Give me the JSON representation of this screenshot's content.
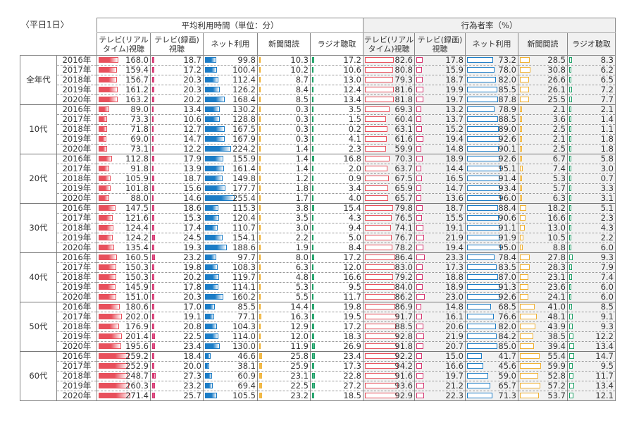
{
  "title": "〈平日1日〉",
  "header": {
    "time_group": "平均利用時間（単位：分）",
    "rate_group": "行為者率（%）",
    "columns": [
      "テレビ(リアルタイム)視聴",
      "テレビ(録画)視聴",
      "ネット利用",
      "新聞閲読",
      "ラジオ聴取"
    ],
    "columns_rate": [
      "テレビ(リアルタイム)視聴",
      "テレビ(録画)視聴",
      "ネット利用",
      "新聞閲読",
      "ラジオ聴取"
    ]
  },
  "colors": {
    "tv_live": "#e8505c",
    "tv_rec": "#d6336f",
    "net": "#1b7cc6",
    "paper": "#f0b030",
    "radio": "#1aa065"
  },
  "groups": [
    {
      "label": "全年代",
      "rows": [
        {
          "year": "2016年",
          "time": [
            "168.0",
            "18.7",
            "99.8",
            "10.3",
            "17.2"
          ],
          "rate": [
            "82.6",
            "17.8",
            "73.2",
            "28.5",
            "8.3"
          ]
        },
        {
          "year": "2017年",
          "time": [
            "159.4",
            "17.2",
            "100.4",
            "10.2",
            "10.6"
          ],
          "rate": [
            "80.8",
            "15.9",
            "78.0",
            "30.8",
            "6.2"
          ]
        },
        {
          "year": "2018年",
          "time": [
            "156.7",
            "20.3",
            "112.4",
            "8.7",
            "13.0"
          ],
          "rate": [
            "79.3",
            "18.7",
            "82.0",
            "26.6",
            "6.5"
          ]
        },
        {
          "year": "2019年",
          "time": [
            "161.2",
            "20.3",
            "126.2",
            "8.4",
            "12.4"
          ],
          "rate": [
            "81.6",
            "19.9",
            "85.5",
            "26.1",
            "7.2"
          ]
        },
        {
          "year": "2020年",
          "time": [
            "163.2",
            "20.2",
            "168.4",
            "8.5",
            "13.4"
          ],
          "rate": [
            "81.8",
            "19.7",
            "87.8",
            "25.5",
            "7.7"
          ]
        }
      ]
    },
    {
      "label": "10代",
      "rows": [
        {
          "year": "2016年",
          "time": [
            "89.0",
            "13.4",
            "130.2",
            "0.3",
            "3.5"
          ],
          "rate": [
            "69.3",
            "13.2",
            "78.9",
            "2.1",
            "2.1"
          ]
        },
        {
          "year": "2017年",
          "time": [
            "73.3",
            "10.6",
            "128.8",
            "0.3",
            "1.5"
          ],
          "rate": [
            "60.4",
            "13.7",
            "88.5",
            "3.6",
            "1.4"
          ]
        },
        {
          "year": "2018年",
          "time": [
            "71.8",
            "12.7",
            "167.5",
            "0.3",
            "0.2"
          ],
          "rate": [
            "63.1",
            "15.2",
            "89.0",
            "2.5",
            "1.1"
          ]
        },
        {
          "year": "2019年",
          "time": [
            "69.0",
            "14.7",
            "167.9",
            "0.3",
            "4.1"
          ],
          "rate": [
            "61.6",
            "19.4",
            "92.6",
            "2.1",
            "1.8"
          ]
        },
        {
          "year": "2020年",
          "time": [
            "73.1",
            "12.2",
            "224.2",
            "1.4",
            "2.3"
          ],
          "rate": [
            "59.9",
            "14.8",
            "90.1",
            "2.5",
            "1.8"
          ]
        }
      ]
    },
    {
      "label": "20代",
      "rows": [
        {
          "year": "2016年",
          "time": [
            "112.8",
            "17.9",
            "155.9",
            "1.4",
            "16.8"
          ],
          "rate": [
            "70.3",
            "18.9",
            "92.6",
            "6.7",
            "5.8"
          ]
        },
        {
          "year": "2017年",
          "time": [
            "91.8",
            "13.9",
            "161.4",
            "1.4",
            "2.0"
          ],
          "rate": [
            "63.7",
            "14.4",
            "95.1",
            "7.4",
            "3.0"
          ]
        },
        {
          "year": "2018年",
          "time": [
            "105.9",
            "18.7",
            "149.8",
            "1.2",
            "0.9"
          ],
          "rate": [
            "67.5",
            "16.5",
            "91.4",
            "5.3",
            "0.7"
          ]
        },
        {
          "year": "2019年",
          "time": [
            "101.8",
            "15.6",
            "177.7",
            "1.8",
            "3.4"
          ],
          "rate": [
            "65.9",
            "14.7",
            "93.4",
            "5.7",
            "3.3"
          ]
        },
        {
          "year": "2020年",
          "time": [
            "88.0",
            "14.6",
            "255.4",
            "1.7",
            "4.0"
          ],
          "rate": [
            "65.7",
            "13.6",
            "96.0",
            "6.3",
            "3.1"
          ]
        }
      ]
    },
    {
      "label": "30代",
      "rows": [
        {
          "year": "2016年",
          "time": [
            "147.5",
            "18.6",
            "115.3",
            "3.8",
            "15.4"
          ],
          "rate": [
            "79.8",
            "18.7",
            "88.4",
            "18.2",
            "5.1"
          ]
        },
        {
          "year": "2017年",
          "time": [
            "121.6",
            "15.3",
            "120.4",
            "3.5",
            "4.3"
          ],
          "rate": [
            "76.5",
            "15.5",
            "90.6",
            "16.6",
            "2.3"
          ]
        },
        {
          "year": "2018年",
          "time": [
            "124.4",
            "17.4",
            "110.7",
            "3.0",
            "9.4"
          ],
          "rate": [
            "74.1",
            "19.1",
            "91.1",
            "13.0",
            "4.3"
          ]
        },
        {
          "year": "2019年",
          "time": [
            "124.2",
            "24.5",
            "154.1",
            "2.2",
            "5.0"
          ],
          "rate": [
            "76.7",
            "21.9",
            "91.9",
            "10.5",
            "2.2"
          ]
        },
        {
          "year": "2020年",
          "time": [
            "135.4",
            "19.3",
            "188.6",
            "1.9",
            "8.4"
          ],
          "rate": [
            "78.2",
            "19.4",
            "95.0",
            "8.8",
            "6.0"
          ]
        }
      ]
    },
    {
      "label": "40代",
      "rows": [
        {
          "year": "2016年",
          "time": [
            "160.5",
            "23.2",
            "97.7",
            "8.0",
            "17.2"
          ],
          "rate": [
            "86.4",
            "23.3",
            "78.4",
            "27.8",
            "9.3"
          ]
        },
        {
          "year": "2017年",
          "time": [
            "150.3",
            "19.8",
            "108.3",
            "6.3",
            "12.0"
          ],
          "rate": [
            "83.0",
            "17.3",
            "83.5",
            "28.3",
            "7.9"
          ]
        },
        {
          "year": "2018年",
          "time": [
            "150.3",
            "20.2",
            "119.7",
            "4.8",
            "16.6"
          ],
          "rate": [
            "79.2",
            "18.8",
            "87.0",
            "23.1",
            "7.4"
          ]
        },
        {
          "year": "2019年",
          "time": [
            "145.9",
            "17.8",
            "114.1",
            "5.3",
            "9.5"
          ],
          "rate": [
            "84.0",
            "18.9",
            "91.3",
            "23.6",
            "6.0"
          ]
        },
        {
          "year": "2020年",
          "time": [
            "151.0",
            "20.3",
            "160.2",
            "5.5",
            "11.7"
          ],
          "rate": [
            "86.2",
            "23.0",
            "92.6",
            "24.1",
            "6.0"
          ]
        }
      ]
    },
    {
      "label": "50代",
      "rows": [
        {
          "year": "2016年",
          "time": [
            "180.6",
            "17.0",
            "85.5",
            "14.4",
            "19.8"
          ],
          "rate": [
            "86.9",
            "14.8",
            "68.5",
            "41.0",
            "8.5"
          ]
        },
        {
          "year": "2017年",
          "time": [
            "202.0",
            "19.1",
            "77.1",
            "16.3",
            "19.5"
          ],
          "rate": [
            "91.7",
            "16.1",
            "76.6",
            "48.1",
            "9.1"
          ]
        },
        {
          "year": "2018年",
          "time": [
            "176.9",
            "20.8",
            "104.3",
            "12.9",
            "17.2"
          ],
          "rate": [
            "88.5",
            "20.6",
            "82.0",
            "43.9",
            "9.3"
          ]
        },
        {
          "year": "2019年",
          "time": [
            "201.4",
            "22.5",
            "114.0",
            "12.0",
            "18.3"
          ],
          "rate": [
            "92.8",
            "21.9",
            "84.2",
            "38.5",
            "12.2"
          ]
        },
        {
          "year": "2020年",
          "time": [
            "195.6",
            "23.4",
            "130.0",
            "11.9",
            "26.9"
          ],
          "rate": [
            "91.8",
            "20.7",
            "85.0",
            "39.4",
            "13.4"
          ]
        }
      ]
    },
    {
      "label": "60代",
      "rows": [
        {
          "year": "2016年",
          "time": [
            "259.2",
            "18.4",
            "46.6",
            "25.8",
            "23.4"
          ],
          "rate": [
            "92.2",
            "15.0",
            "41.7",
            "55.4",
            "14.7"
          ]
        },
        {
          "year": "2017年",
          "time": [
            "252.9",
            "20.0",
            "38.1",
            "25.9",
            "17.3"
          ],
          "rate": [
            "94.2",
            "16.6",
            "45.6",
            "59.9",
            "9.5"
          ]
        },
        {
          "year": "2018年",
          "time": [
            "248.7",
            "27.3",
            "60.9",
            "23.1",
            "22.8"
          ],
          "rate": [
            "91.6",
            "19.7",
            "59.0",
            "52.8",
            "11.7"
          ]
        },
        {
          "year": "2019年",
          "time": [
            "260.3",
            "23.2",
            "69.4",
            "22.5",
            "27.2"
          ],
          "rate": [
            "93.6",
            "21.2",
            "65.7",
            "57.2",
            "13.4"
          ]
        },
        {
          "year": "2020年",
          "time": [
            "271.4",
            "25.7",
            "105.5",
            "23.2",
            "18.5"
          ],
          "rate": [
            "92.9",
            "22.3",
            "71.3",
            "53.7",
            "12.1"
          ]
        }
      ]
    }
  ]
}
